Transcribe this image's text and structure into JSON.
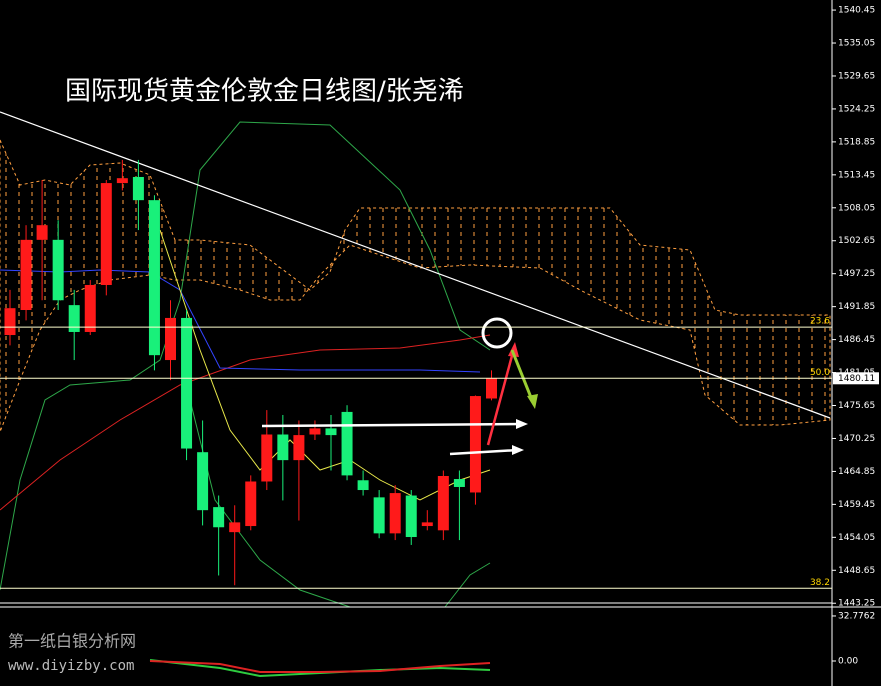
{
  "chart_data": {
    "type": "candlestick",
    "title": "国际现货黄金伦敦金日线图/张尧浠",
    "watermark": "第一纸白银分析网",
    "watermark_url": "www.diyizby.com",
    "open": [
      1487.2,
      1491.3,
      1502.8,
      1502.8,
      1492.1,
      1487.7,
      1495.4,
      1512.1,
      1513.1,
      1509.3,
      1483.1,
      1490.0,
      1468.0,
      1459.0,
      1454.9,
      1455.9,
      1463.2,
      1470.9,
      1466.7,
      1470.9,
      1471.9,
      1474.6,
      1463.4,
      1460.6,
      1454.7,
      1460.9,
      1455.9,
      1455.2,
      1463.6,
      1461.4,
      1476.8
    ],
    "high": [
      1494.6,
      1505.2,
      1512.6,
      1506.0,
      1494.6,
      1496.2,
      1512.6,
      1515.9,
      1515.9,
      1510.1,
      1492.9,
      1491.3,
      1473.2,
      1460.9,
      1459.3,
      1464.2,
      1474.9,
      1474.1,
      1473.2,
      1473.2,
      1474.1,
      1475.7,
      1465.0,
      1461.8,
      1462.6,
      1461.8,
      1458.5,
      1465.0,
      1465.0,
      1477.3,
      1481.4
    ],
    "low": [
      1485.5,
      1489.6,
      1492.9,
      1491.3,
      1483.1,
      1487.2,
      1493.7,
      1510.9,
      1504.4,
      1481.4,
      1479.8,
      1466.7,
      1456.0,
      1447.8,
      1446.2,
      1455.2,
      1461.8,
      1460.1,
      1456.8,
      1470.0,
      1465.0,
      1463.4,
      1460.9,
      1453.9,
      1453.6,
      1452.8,
      1455.2,
      1453.6,
      1453.6,
      1459.4,
      1476.5
    ],
    "close": [
      1491.6,
      1502.8,
      1505.2,
      1492.9,
      1487.7,
      1495.4,
      1512.1,
      1512.9,
      1509.3,
      1483.9,
      1490.0,
      1468.6,
      1458.5,
      1455.7,
      1456.5,
      1463.2,
      1470.9,
      1466.7,
      1470.8,
      1471.9,
      1470.8,
      1464.2,
      1461.8,
      1454.7,
      1461.3,
      1454.1,
      1456.5,
      1464.1,
      1462.3,
      1477.2,
      1480.1
    ],
    "up_color": "#ff1a1a",
    "down_color": "#19f07a",
    "ylim": [
      1442.6,
      1542.1
    ],
    "yticks": [
      1540.45,
      1535.05,
      1529.65,
      1524.25,
      1518.85,
      1513.45,
      1508.05,
      1502.65,
      1497.25,
      1491.85,
      1486.45,
      1481.05,
      1475.65,
      1470.25,
      1464.85,
      1459.45,
      1454.05,
      1448.65,
      1443.25
    ],
    "last_price": 1480.11,
    "fib_levels": [
      {
        "value": 1488.5,
        "label": "23.6"
      },
      {
        "value": 1480.11,
        "label": "50.0"
      },
      {
        "value": 1445.7,
        "label": "38.2"
      }
    ],
    "sub_ylim": [
      -18.2,
      39.3
    ],
    "sub_yticks": [
      32.7762,
      {
        "value": 0,
        "label": "0.00"
      }
    ]
  }
}
